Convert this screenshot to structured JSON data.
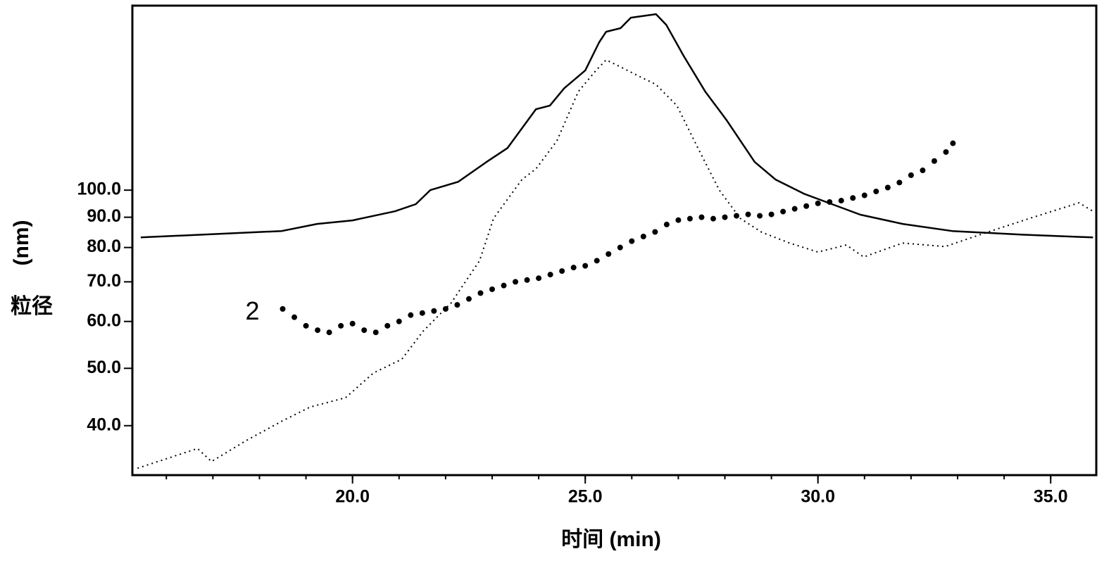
{
  "chart_data": {
    "type": "line",
    "xlabel": "时间 (min)",
    "ylabel": "粒径",
    "ylabel_unit": "(nm)",
    "xlim": [
      15.27,
      35.98
    ],
    "ylim": [
      33,
      205
    ],
    "ylog": true,
    "xticks": [
      {
        "value": 20,
        "label": "20.0"
      },
      {
        "value": 25,
        "label": "25.0"
      },
      {
        "value": 30,
        "label": "30.0"
      },
      {
        "value": 35,
        "label": "35.0"
      }
    ],
    "yticks": [
      {
        "value": 40,
        "label": "40.0"
      },
      {
        "value": 50,
        "label": "50.0"
      },
      {
        "value": 60,
        "label": "60.0"
      },
      {
        "value": 70,
        "label": "70.0"
      },
      {
        "value": 80,
        "label": "80.0"
      },
      {
        "value": 90,
        "label": "90.0"
      },
      {
        "value": 100,
        "label": "100.0"
      }
    ],
    "annotations": [
      {
        "text": "2",
        "x": 17.85,
        "y": 62
      }
    ],
    "series": [
      {
        "kind": "line",
        "dash": "solid",
        "color": "#000000",
        "x": [
          15.45,
          18.48,
          19.24,
          20,
          20.91,
          21.36,
          21.67,
          22.27,
          22.88,
          23.33,
          23.94,
          24.24,
          24.55,
          25,
          25.3,
          25.45,
          25.76,
          25.98,
          26.52,
          26.74,
          27.12,
          27.58,
          28.03,
          28.64,
          29.09,
          29.7,
          30.3,
          30.91,
          31.82,
          32.88,
          34.39,
          35.91
        ],
        "values": [
          83.2,
          85.3,
          87.7,
          88.9,
          92.1,
          94.7,
          100,
          103.3,
          111.6,
          117.8,
          137.0,
          138.9,
          148.7,
          159.3,
          177.8,
          185.2,
          187.8,
          195.6,
          198.3,
          190.3,
          168.3,
          146.7,
          131.5,
          111.6,
          104.2,
          98.6,
          94.7,
          90.9,
          87.7,
          85.3,
          84.1,
          83.2
        ]
      },
      {
        "kind": "line",
        "dash": "dotted",
        "color": "#000000",
        "x": [
          15.38,
          16.67,
          16.97,
          17.73,
          18.48,
          19.09,
          19.85,
          20.45,
          21.06,
          21.52,
          22.12,
          22.73,
          23.03,
          23.64,
          23.94,
          24.39,
          24.85,
          25.23,
          25.45,
          25.76,
          26.06,
          26.52,
          26.97,
          27.42,
          27.88,
          28.33,
          28.79,
          29.39,
          30,
          30.61,
          30.98,
          31.82,
          32.73,
          33.64,
          34.55,
          35.61,
          35.91
        ],
        "values": [
          33.9,
          36.6,
          34.8,
          37.8,
          40.7,
          43.0,
          44.6,
          49.1,
          51.8,
          57.8,
          64.5,
          76.0,
          89.6,
          104.2,
          108.6,
          121.1,
          146.7,
          159.3,
          166.0,
          161.5,
          157.1,
          150.8,
          138.9,
          117.8,
          100,
          89.6,
          84.9,
          81.4,
          78.6,
          80.8,
          77.1,
          81.4,
          80.3,
          84.9,
          89.6,
          95.2,
          92.1
        ]
      },
      {
        "kind": "scatter",
        "color": "#000000",
        "x": [
          18.5,
          18.75,
          19.0,
          19.25,
          19.5,
          19.75,
          20.0,
          20.25,
          20.5,
          20.75,
          21.0,
          21.25,
          21.5,
          21.75,
          22.0,
          22.25,
          22.5,
          22.75,
          23.0,
          23.25,
          23.5,
          23.75,
          24.0,
          24.25,
          24.5,
          24.75,
          25.0,
          25.25,
          25.5,
          25.75,
          26.0,
          26.25,
          26.5,
          26.75,
          27.0,
          27.25,
          27.5,
          27.75,
          28.0,
          28.25,
          28.5,
          28.75,
          29.0,
          29.25,
          29.5,
          29.75,
          30.0,
          30.25,
          30.5,
          30.75,
          31.0,
          31.25,
          31.5,
          31.75,
          32.0,
          32.25,
          32.5,
          32.75,
          32.9
        ],
        "values": [
          63,
          61,
          59,
          58,
          57.5,
          59,
          59.5,
          58,
          57.5,
          59,
          60,
          61.5,
          62,
          62.5,
          63,
          64,
          65.5,
          67,
          68,
          69,
          70,
          70.5,
          71,
          72,
          73,
          74,
          74.5,
          76,
          78,
          80,
          82,
          83.5,
          85,
          87.5,
          89,
          89.5,
          90,
          89.5,
          90,
          90.5,
          91,
          90.5,
          91,
          92,
          93,
          94,
          95,
          95.5,
          96,
          97,
          98,
          99.5,
          101,
          103,
          106,
          108,
          112,
          116,
          120
        ]
      }
    ]
  }
}
